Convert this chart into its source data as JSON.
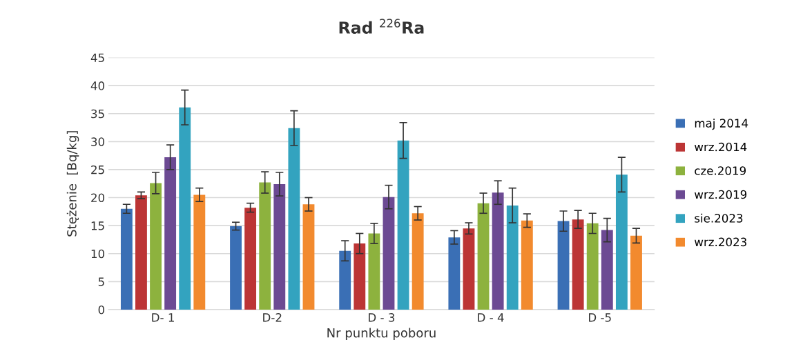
{
  "chart_data": {
    "type": "bar",
    "title": "Rad $^{226}$Ra",
    "xlabel": "Nr punktu poboru",
    "ylabel": "Stężenie  [Bq/kg]",
    "categories": [
      "D- 1",
      "D-2",
      "D - 3",
      "D - 4",
      "D -5"
    ],
    "series": [
      {
        "name": "maj 2014",
        "color": "#3a6fb5",
        "values": [
          18.0,
          14.9,
          10.5,
          12.9,
          15.8
        ],
        "errors": [
          0.8,
          0.7,
          1.8,
          1.2,
          1.8
        ]
      },
      {
        "name": "wrz.2014",
        "color": "#bc3535",
        "values": [
          20.4,
          18.2,
          11.8,
          14.5,
          16.1
        ],
        "errors": [
          0.6,
          0.8,
          1.8,
          1.0,
          1.6
        ]
      },
      {
        "name": "cze.2019",
        "color": "#8db23e",
        "values": [
          22.6,
          22.7,
          13.6,
          19.0,
          15.4
        ],
        "errors": [
          1.9,
          1.9,
          1.8,
          1.8,
          1.8
        ]
      },
      {
        "name": "wrz.2019",
        "color": "#6c4a93",
        "values": [
          27.2,
          22.4,
          20.1,
          20.9,
          14.2
        ],
        "errors": [
          2.2,
          2.1,
          2.1,
          2.1,
          2.1
        ]
      },
      {
        "name": "sie.2023",
        "color": "#33a3bf",
        "values": [
          36.1,
          32.4,
          30.2,
          18.6,
          24.1
        ],
        "errors": [
          3.1,
          3.1,
          3.2,
          3.1,
          3.1
        ]
      },
      {
        "name": "wrz.2023",
        "color": "#f28a2e",
        "values": [
          20.5,
          18.8,
          17.2,
          15.9,
          13.2
        ],
        "errors": [
          1.2,
          1.2,
          1.2,
          1.2,
          1.3
        ]
      }
    ],
    "ylim": [
      0,
      45
    ],
    "yticks": [
      0,
      5,
      10,
      15,
      20,
      25,
      30,
      35,
      40,
      45
    ],
    "grid": "y",
    "legend": "right"
  }
}
